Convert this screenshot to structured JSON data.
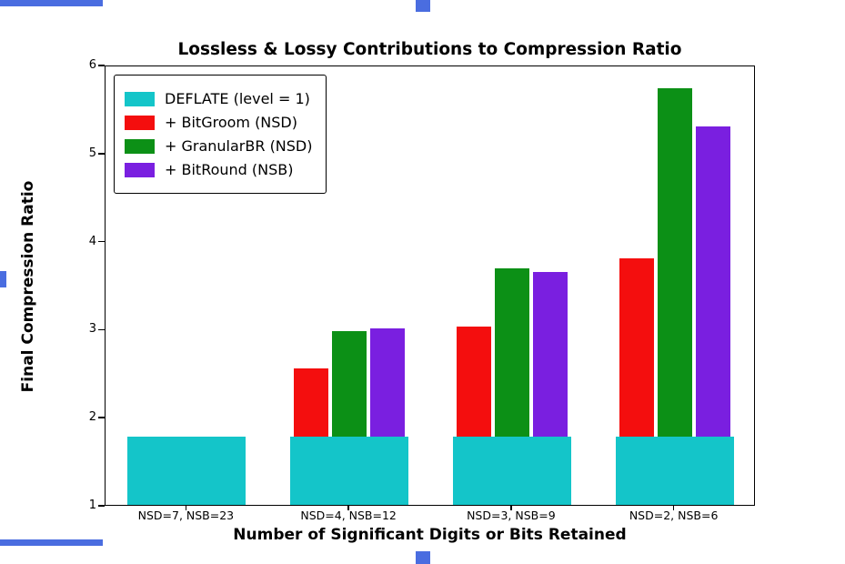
{
  "ui": {
    "edge_marker_color": "#4a6de0"
  },
  "chart_data": {
    "type": "bar",
    "title": "Lossless & Lossy Contributions to Compression Ratio",
    "xlabel": "Number of Significant Digits or Bits Retained",
    "ylabel": "Final Compression Ratio",
    "ylim": [
      1,
      6
    ],
    "yticks": [
      1,
      2,
      3,
      4,
      5,
      6
    ],
    "grid": false,
    "legend_position": "upper left",
    "categories": [
      "NSD=7, NSB=23",
      "NSD=4, NSB=12",
      "NSD=3, NSB=9",
      "NSD=2, NSB=6"
    ],
    "baseline_value": 1.78,
    "series": [
      {
        "name": "DEFLATE (level = 1)",
        "color": "#14c5c9",
        "role": "baseline",
        "values": [
          1.78,
          1.78,
          1.78,
          1.78
        ]
      },
      {
        "name": "+ BitGroom (NSD)",
        "color": "#f40e0e",
        "role": "overlay",
        "values": [
          null,
          2.55,
          3.03,
          3.8
        ]
      },
      {
        "name": "+ GranularBR (NSD)",
        "color": "#0c9016",
        "role": "overlay",
        "values": [
          null,
          2.97,
          3.69,
          5.73
        ]
      },
      {
        "name": "+ BitRound (NSB)",
        "color": "#7a1fe0",
        "role": "overlay",
        "values": [
          null,
          3.0,
          3.64,
          5.3
        ]
      }
    ]
  }
}
